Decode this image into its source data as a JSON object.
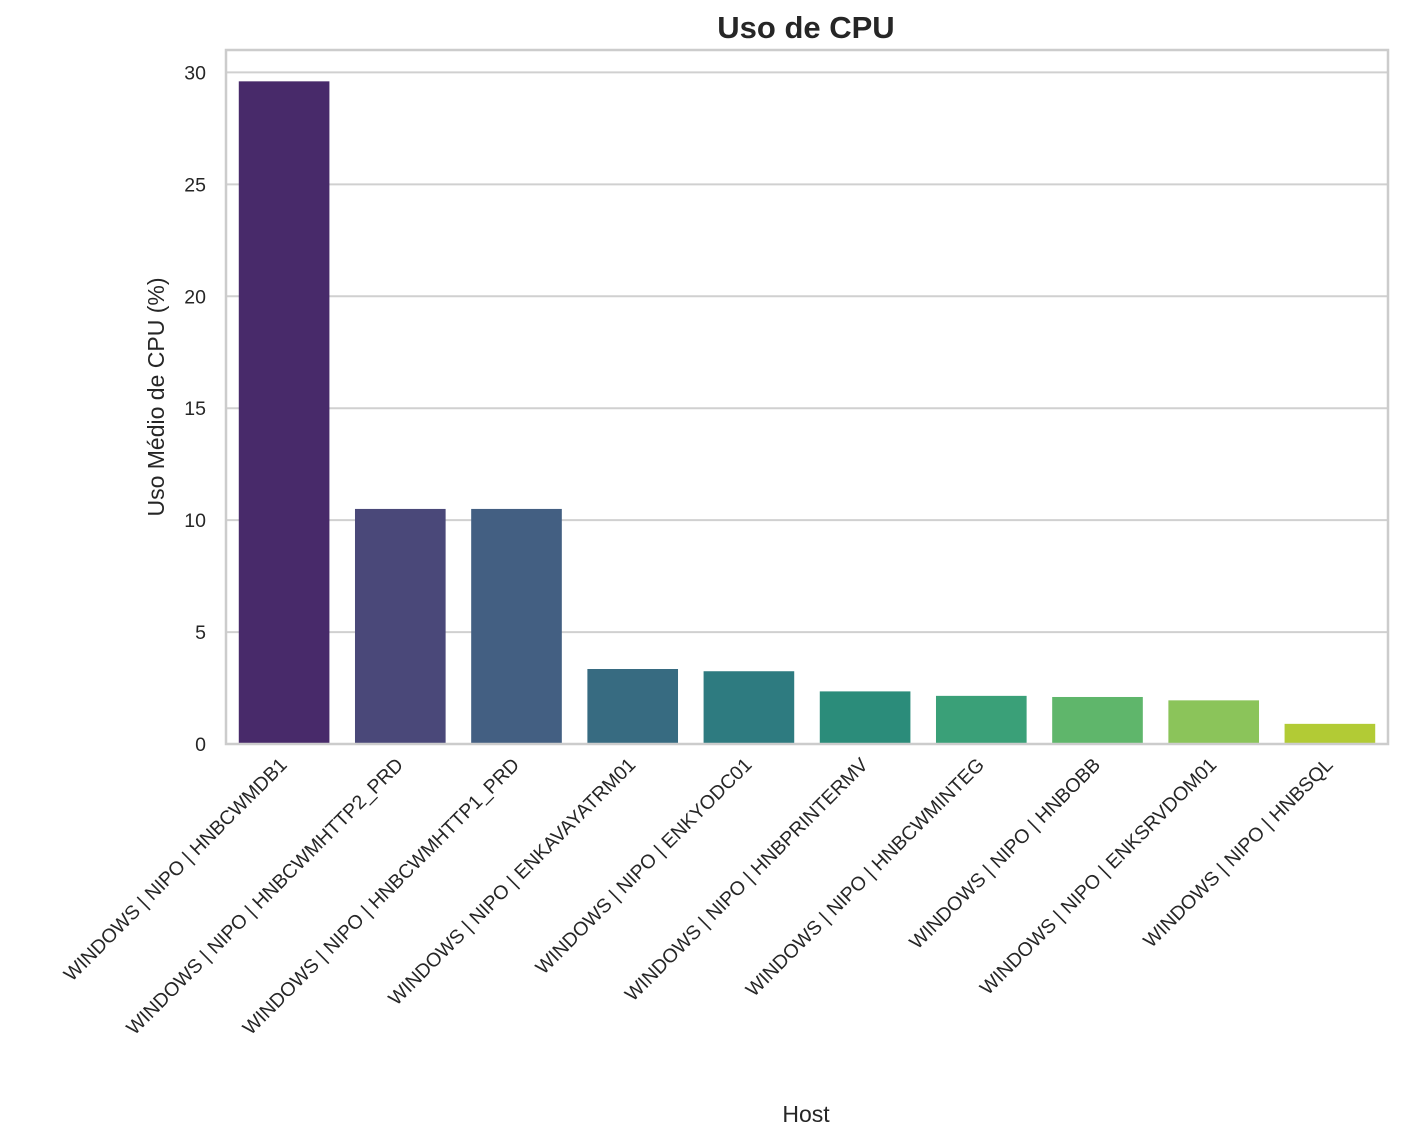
{
  "chart_data": {
    "type": "bar",
    "title": "Uso de CPU",
    "xlabel": "Host",
    "ylabel": "Uso Médio de CPU (%)",
    "ylim": [
      0,
      31
    ],
    "yticks": [
      0,
      5,
      10,
      15,
      20,
      25,
      30
    ],
    "grid": "horizontal",
    "categories": [
      "WINDOWS | NIPO | HNBCWMDB1",
      "WINDOWS | NIPO | HNBCWMHTTP2_PRD",
      "WINDOWS | NIPO | HNBCWMHTTP1_PRD",
      "WINDOWS | NIPO | ENKAVAYATRM01",
      "WINDOWS | NIPO | ENKYODC01",
      "WINDOWS | NIPO | HNBPRINTERMV",
      "WINDOWS | NIPO | HNBCWMINTEG",
      "WINDOWS | NIPO | HNBOBB",
      "WINDOWS | NIPO | ENKSRVDOM01",
      "WINDOWS | NIPO | HNBSQL"
    ],
    "values": [
      29.6,
      10.5,
      10.5,
      3.35,
      3.25,
      2.35,
      2.15,
      2.1,
      1.95,
      0.9
    ],
    "colors": [
      "#482a6a",
      "#4a4879",
      "#435f82",
      "#376b81",
      "#2e7b80",
      "#2b8c7a",
      "#3aa078",
      "#5fb66b",
      "#8bc45a",
      "#b2cb35"
    ]
  }
}
